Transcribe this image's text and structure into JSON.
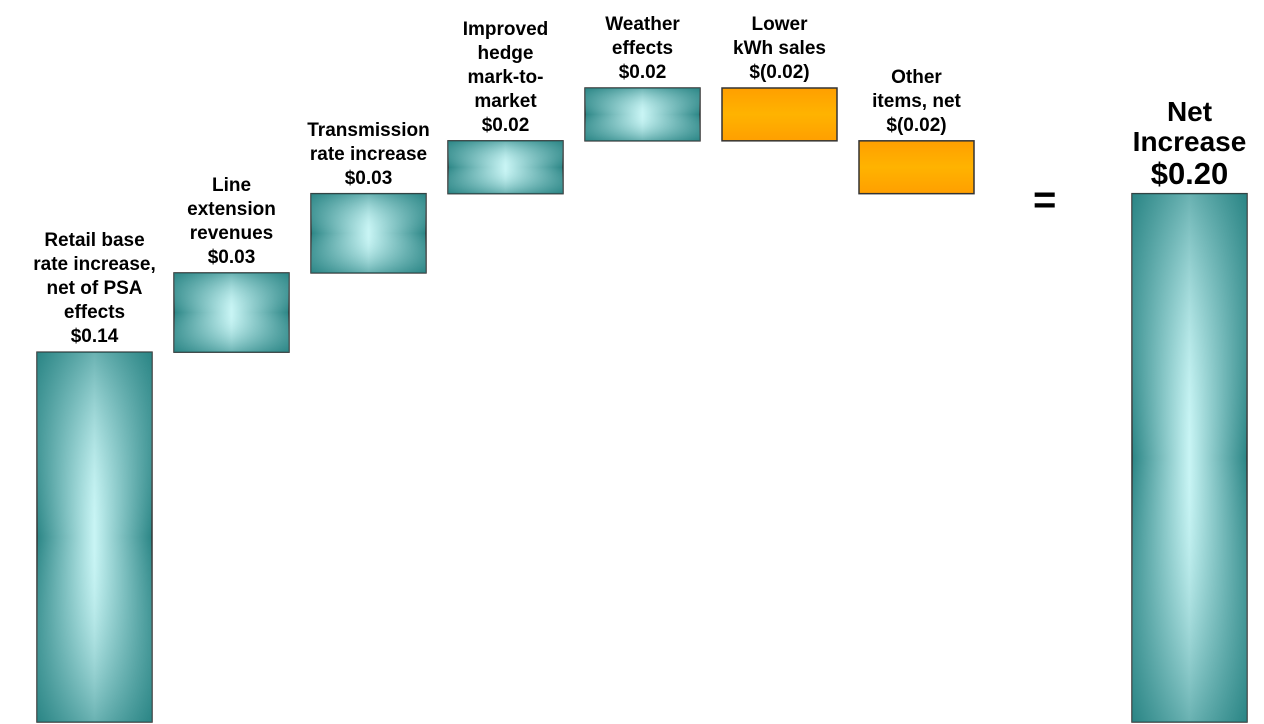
{
  "chart_data": {
    "type": "waterfall",
    "categories": [
      "Retail base\nrate increase,\nnet of PSA\neffects",
      "Line\nextension\nrevenues",
      "Transmission\nrate increase",
      "Improved\nhedge\nmark-to-\nmarket",
      "Weather\neffects",
      "Lower\nkWh sales",
      "Other\nitems, net"
    ],
    "values": [
      0.14,
      0.03,
      0.03,
      0.02,
      0.02,
      -0.02,
      -0.02
    ],
    "value_labels": [
      "$0.14",
      "$0.03",
      "$0.03",
      "$0.02",
      "$0.02",
      "$(0.02)",
      "$(0.02)"
    ],
    "increase_color": "#2e8f8f",
    "decrease_color": "#ffa500",
    "equals_sign": "=",
    "total": {
      "label": "Net\nIncrease",
      "value": 0.2,
      "value_label": "$0.20"
    }
  }
}
